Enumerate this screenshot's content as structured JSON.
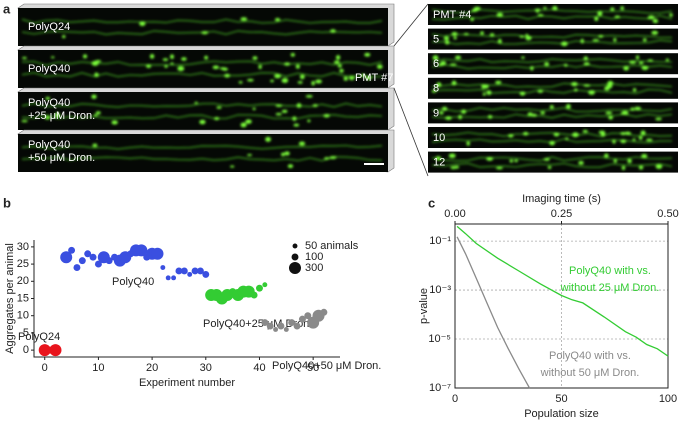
{
  "panel_labels": [
    "a",
    "b",
    "c"
  ],
  "images": {
    "left": [
      {
        "lines": [
          "PolyQ24"
        ]
      },
      {
        "lines": [
          "PolyQ40"
        ]
      },
      {
        "lines": [
          "PolyQ40",
          "+25 μM Dron."
        ]
      },
      {
        "lines": [
          "PolyQ40",
          "+50 μM Dron."
        ]
      }
    ],
    "left_callout": "PMT #7",
    "right": [
      "PMT #4",
      "5",
      "6",
      "8",
      "9",
      "10",
      "12"
    ]
  },
  "chart_data": [
    {
      "type": "bubble",
      "x_label": "Experiment number",
      "y_label": "Aggregates per animal",
      "xlim": [
        -2,
        55
      ],
      "ylim": [
        -2,
        32
      ],
      "xticks": [
        0,
        10,
        20,
        30,
        40,
        50
      ],
      "yticks": [
        0,
        5,
        10,
        15,
        20,
        25,
        30
      ],
      "size_legend": [
        {
          "value": 50,
          "label": "50 animals"
        },
        {
          "value": 100,
          "label": "100"
        },
        {
          "value": 300,
          "label": "300"
        }
      ],
      "series": [
        {
          "name": "PolyQ24",
          "color": "#e8141c",
          "x": [
            0,
            1,
            2
          ],
          "values": [
            0,
            0,
            0
          ],
          "sizes": [
            300,
            100,
            300
          ]
        },
        {
          "name": "PolyQ40",
          "color": "#3a4fe0",
          "x": [
            4,
            5,
            6,
            7,
            8,
            9,
            10,
            11,
            12,
            13,
            14,
            15,
            16,
            17,
            18,
            19,
            20,
            21,
            22,
            23,
            24,
            25,
            26,
            27,
            28,
            29,
            30
          ],
          "values": [
            27,
            29,
            24,
            26,
            28,
            27,
            25,
            27,
            26,
            27,
            26,
            27,
            28,
            29,
            29,
            27,
            28,
            28,
            24,
            21,
            21,
            23,
            23,
            22,
            23,
            23,
            22
          ],
          "sizes": [
            300,
            100,
            100,
            100,
            100,
            100,
            100,
            300,
            100,
            100,
            300,
            300,
            100,
            300,
            300,
            100,
            300,
            300,
            50,
            50,
            50,
            100,
            100,
            50,
            100,
            100,
            100
          ]
        },
        {
          "name": "PolyQ40+25 μM Dron.",
          "color": "#33cc33",
          "x": [
            31,
            32,
            33,
            34,
            35,
            36,
            37,
            38,
            39,
            40,
            41
          ],
          "values": [
            16,
            16,
            15,
            16,
            17,
            16,
            17,
            17,
            16,
            18,
            19
          ],
          "sizes": [
            300,
            300,
            300,
            300,
            100,
            300,
            300,
            300,
            100,
            100,
            50
          ]
        },
        {
          "name": "PolyQ40+50 μM Dron.",
          "color": "#8a8a8a",
          "x": [
            41,
            42,
            43,
            44,
            45,
            46,
            47,
            48,
            49,
            50,
            51,
            52
          ],
          "values": [
            8,
            7,
            6,
            7,
            6,
            8,
            7,
            9,
            10,
            8,
            10,
            11
          ],
          "sizes": [
            100,
            100,
            50,
            100,
            50,
            100,
            100,
            100,
            100,
            300,
            300,
            100
          ]
        }
      ]
    },
    {
      "type": "line",
      "x_label": "Population size",
      "x2_label": "Imaging time (s)",
      "y_label": "p-value",
      "xlim": [
        0,
        100
      ],
      "xticks": [
        0,
        50,
        100
      ],
      "x2lim": [
        0,
        0.5
      ],
      "x2ticks": [
        {
          "value": 0,
          "label": "0.00"
        },
        {
          "value": 0.25,
          "label": "0.25"
        },
        {
          "value": 0.5,
          "label": "0.50"
        }
      ],
      "ylim": [
        1e-07,
        0.5
      ],
      "log_y": true,
      "grid": true,
      "yticks": [
        {
          "value": 0.1,
          "label": "10⁻¹"
        },
        {
          "value": 0.001,
          "label": "10⁻³"
        },
        {
          "value": 1e-05,
          "label": "10⁻⁵"
        },
        {
          "value": 1e-07,
          "label": "10⁻⁷"
        }
      ],
      "series": [
        {
          "name": [
            "PolyQ40 with vs.",
            "without 25 μM Dron."
          ],
          "color": "#33cc33",
          "x": [
            1,
            5,
            10,
            20,
            30,
            40,
            50,
            55,
            60,
            70,
            80,
            85,
            90,
            95,
            100
          ],
          "values": [
            0.4,
            0.2,
            0.08,
            0.02,
            0.006,
            0.0018,
            0.0006,
            0.0004,
            0.0003,
            8e-05,
            2e-05,
            1.2e-05,
            6e-06,
            4e-06,
            2e-06
          ]
        },
        {
          "name": [
            "PolyQ40 with vs.",
            "without 50 μM Dron."
          ],
          "color": "#8a8a8a",
          "x": [
            1,
            5,
            10,
            15,
            20,
            25,
            30,
            35
          ],
          "values": [
            0.15,
            0.03,
            0.003,
            0.0003,
            3e-05,
            4e-06,
            6e-07,
            1e-07
          ]
        }
      ]
    }
  ]
}
